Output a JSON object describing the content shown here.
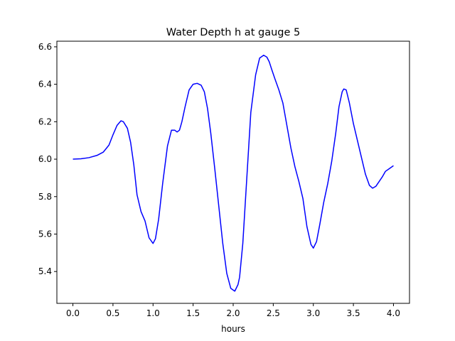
{
  "chart_data": {
    "type": "line",
    "title": "Water Depth h at gauge 5",
    "xlabel": "hours",
    "ylabel": "",
    "xlim": [
      -0.2,
      4.2
    ],
    "ylim": [
      5.23,
      6.63
    ],
    "xticks": [
      0.0,
      0.5,
      1.0,
      1.5,
      2.0,
      2.5,
      3.0,
      3.5,
      4.0
    ],
    "xtick_labels": [
      "0.0",
      "0.5",
      "1.0",
      "1.5",
      "2.0",
      "2.5",
      "3.0",
      "3.5",
      "4.0"
    ],
    "yticks": [
      5.4,
      5.6,
      5.8,
      6.0,
      6.2,
      6.4,
      6.6
    ],
    "ytick_labels": [
      "5.4",
      "5.6",
      "5.8",
      "6.0",
      "6.2",
      "6.4",
      "6.6"
    ],
    "grid": false,
    "series": [
      {
        "name": "",
        "color": "#0000ff",
        "x": [
          0.0,
          0.1,
          0.2,
          0.3,
          0.38,
          0.45,
          0.5,
          0.55,
          0.6,
          0.63,
          0.68,
          0.72,
          0.76,
          0.8,
          0.85,
          0.9,
          0.95,
          1.0,
          1.03,
          1.07,
          1.12,
          1.18,
          1.23,
          1.27,
          1.3,
          1.33,
          1.36,
          1.4,
          1.45,
          1.5,
          1.55,
          1.6,
          1.64,
          1.68,
          1.72,
          1.77,
          1.82,
          1.87,
          1.92,
          1.97,
          2.02,
          2.06,
          2.08,
          2.12,
          2.17,
          2.22,
          2.28,
          2.33,
          2.38,
          2.42,
          2.45,
          2.48,
          2.52,
          2.57,
          2.62,
          2.67,
          2.72,
          2.77,
          2.82,
          2.87,
          2.92,
          2.97,
          3.0,
          3.04,
          3.08,
          3.13,
          3.18,
          3.23,
          3.28,
          3.32,
          3.36,
          3.38,
          3.41,
          3.45,
          3.5,
          3.55,
          3.6,
          3.65,
          3.7,
          3.74,
          3.78,
          3.82,
          3.86,
          3.9,
          3.95,
          4.0
        ],
        "y": [
          6.0,
          6.002,
          6.008,
          6.02,
          6.038,
          6.075,
          6.13,
          6.18,
          6.205,
          6.2,
          6.165,
          6.09,
          5.97,
          5.81,
          5.72,
          5.67,
          5.58,
          5.55,
          5.575,
          5.68,
          5.87,
          6.07,
          6.155,
          6.155,
          6.145,
          6.155,
          6.2,
          6.28,
          6.37,
          6.4,
          6.405,
          6.395,
          6.36,
          6.27,
          6.14,
          5.95,
          5.75,
          5.55,
          5.39,
          5.31,
          5.295,
          5.33,
          5.37,
          5.55,
          5.9,
          6.25,
          6.45,
          6.54,
          6.555,
          6.545,
          6.52,
          6.48,
          6.43,
          6.37,
          6.3,
          6.18,
          6.06,
          5.96,
          5.88,
          5.79,
          5.64,
          5.545,
          5.525,
          5.56,
          5.65,
          5.77,
          5.87,
          5.99,
          6.14,
          6.28,
          6.36,
          6.375,
          6.37,
          6.3,
          6.19,
          6.1,
          6.01,
          5.92,
          5.86,
          5.845,
          5.855,
          5.88,
          5.905,
          5.935,
          5.95,
          5.965
        ]
      }
    ]
  }
}
